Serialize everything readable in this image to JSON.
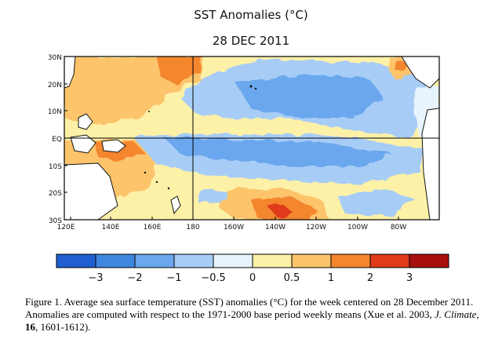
{
  "title": "SST Anomalies (°C)",
  "date": "28 DEC 2011",
  "map": {
    "lat_labels": [
      "30N",
      "20N",
      "10N",
      "EQ",
      "10S",
      "20S",
      "30S"
    ],
    "lon_labels": [
      "120E",
      "140E",
      "160E",
      "180",
      "160W",
      "140W",
      "120W",
      "100W",
      "80W"
    ],
    "colors": {
      "land": "#ffffff",
      "coast": "#111111",
      "gridline": "#000000"
    }
  },
  "colorbar": {
    "labels": [
      "−3",
      "−2",
      "−1",
      "−0.5",
      "0",
      "0.5",
      "1",
      "2",
      "3"
    ],
    "colors": [
      "#1f5fcf",
      "#3f86e0",
      "#6aa7ee",
      "#a7cdf6",
      "#e8f4fc",
      "#fdf1a8",
      "#fdc46c",
      "#f4862f",
      "#e03a1a",
      "#a80f0f"
    ]
  },
  "caption": {
    "prefix": "Figure 1. Average sea surface temperature (SST) anomalies (°C) for the week centered on 28 December 2011.   Anomalies are computed with respect to the 1971-2000 base period weekly means (Xue et al. 2003, ",
    "journal": "J. Climate",
    "sep": ", ",
    "volume": "16",
    "suffix": ", 1601-1612)."
  }
}
